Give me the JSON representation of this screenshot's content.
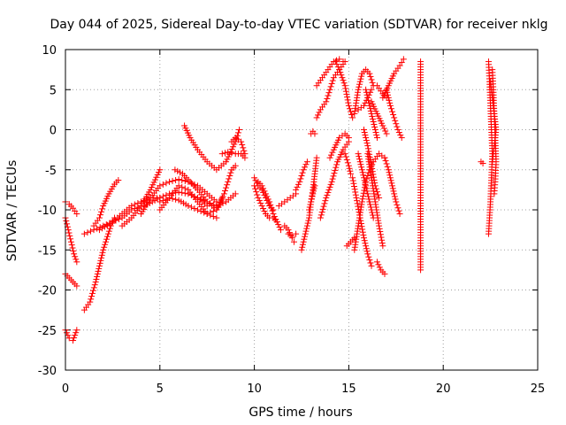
{
  "chart_data": {
    "type": "scatter",
    "title": "Day 044 of 2025, Sidereal Day-to-day VTEC variation (SDTVAR) for receiver nklg",
    "xlabel": "GPS time / hours",
    "ylabel": "SDTVAR / TECUs",
    "xlim": [
      0,
      25
    ],
    "ylim": [
      -30,
      10
    ],
    "xticks": [
      "0",
      "5",
      "10",
      "15",
      "20",
      "25"
    ],
    "yticks": [
      "10",
      "5",
      "0",
      "-5",
      "-10",
      "-15",
      "-20",
      "-25",
      "-30"
    ],
    "grid": true,
    "marker": "+",
    "color": "#ff0000",
    "series": [
      {
        "name": "s1",
        "x": [
          0.0,
          0.2,
          0.4,
          0.6
        ],
        "y": [
          -9.0,
          -9.3,
          -9.8,
          -10.5
        ]
      },
      {
        "name": "s2",
        "x": [
          0.0,
          0.15,
          0.3,
          0.45,
          0.6
        ],
        "y": [
          -11.0,
          -12.5,
          -14.0,
          -15.5,
          -16.5
        ]
      },
      {
        "name": "s3",
        "x": [
          0.0,
          0.2,
          0.4,
          0.6
        ],
        "y": [
          -18.0,
          -18.5,
          -19.0,
          -19.5
        ]
      },
      {
        "name": "s4",
        "x": [
          0.0,
          0.2,
          0.4,
          0.6
        ],
        "y": [
          -25.0,
          -26.0,
          -26.3,
          -25.0
        ]
      },
      {
        "name": "s5",
        "x": [
          1.0,
          1.3,
          1.6,
          2.0,
          2.4,
          2.6
        ],
        "y": [
          -22.5,
          -21.5,
          -19.0,
          -15.0,
          -12.0,
          -11.0
        ]
      },
      {
        "name": "s6",
        "x": [
          1.5,
          1.8,
          2.0,
          2.3,
          2.6,
          2.8
        ],
        "y": [
          -12.0,
          -11.0,
          -9.5,
          -8.0,
          -6.8,
          -6.3
        ]
      },
      {
        "name": "s7",
        "x": [
          1.0,
          1.5,
          2.0,
          2.5,
          3.0,
          3.5,
          4.0
        ],
        "y": [
          -13.0,
          -12.5,
          -12.0,
          -11.5,
          -11.0,
          -10.0,
          -9.5
        ]
      },
      {
        "name": "s8",
        "x": [
          1.8,
          2.5,
          3.0,
          3.5,
          4.0,
          4.5,
          5.0
        ],
        "y": [
          -12.5,
          -11.5,
          -10.5,
          -9.5,
          -9.0,
          -8.5,
          -8.5
        ]
      },
      {
        "name": "s9",
        "x": [
          3.0,
          3.5,
          4.0,
          4.5,
          5.0
        ],
        "y": [
          -12.0,
          -11.0,
          -9.5,
          -7.5,
          -5.0
        ]
      },
      {
        "name": "s10",
        "x": [
          4.0,
          4.5,
          5.0,
          5.5,
          6.0,
          6.5,
          7.0,
          7.5,
          8.0
        ],
        "y": [
          -10.5,
          -8.5,
          -7.0,
          -6.5,
          -6.2,
          -6.5,
          -7.0,
          -8.0,
          -9.0
        ]
      },
      {
        "name": "s11",
        "x": [
          4.2,
          5.0,
          5.5,
          6.0,
          6.5,
          7.0,
          7.5
        ],
        "y": [
          -9.5,
          -8.5,
          -8.0,
          -7.8,
          -8.0,
          -8.5,
          -9.5
        ]
      },
      {
        "name": "s12",
        "x": [
          5.0,
          5.5,
          6.0,
          6.5,
          7.0,
          7.5,
          8.0
        ],
        "y": [
          -9.0,
          -8.5,
          -8.8,
          -9.5,
          -10.0,
          -10.5,
          -11.0
        ]
      },
      {
        "name": "s13",
        "x": [
          5.0,
          5.5,
          6.0,
          6.5,
          7.0,
          7.5,
          8.0,
          8.3
        ],
        "y": [
          -10.0,
          -8.5,
          -7.0,
          -7.5,
          -9.0,
          -10.5,
          -10.0,
          -9.0
        ]
      },
      {
        "name": "s14",
        "x": [
          5.8,
          6.2,
          6.6,
          7.0,
          7.5,
          8.0,
          8.3
        ],
        "y": [
          -5.0,
          -5.5,
          -6.5,
          -7.5,
          -9.0,
          -10.0,
          -8.5
        ]
      },
      {
        "name": "s15",
        "x": [
          6.3,
          6.6,
          7.0,
          7.5,
          8.0,
          8.5,
          9.0,
          9.2
        ],
        "y": [
          0.5,
          -1.0,
          -2.5,
          -4.0,
          -5.0,
          -4.0,
          -1.5,
          0.0
        ]
      },
      {
        "name": "s16",
        "x": [
          7.0,
          7.5,
          8.0,
          8.5,
          9.0
        ],
        "y": [
          -8.5,
          -9.0,
          -9.5,
          -9.0,
          -8.0
        ]
      },
      {
        "name": "s17",
        "x": [
          8.2,
          8.4,
          8.6,
          8.8,
          9.0
        ],
        "y": [
          -9.0,
          -8.0,
          -6.5,
          -5.0,
          -4.5
        ]
      },
      {
        "name": "s18",
        "x": [
          8.3,
          8.6,
          9.0,
          9.3,
          9.5
        ],
        "y": [
          -3.0,
          -2.8,
          -3.0,
          -3.0,
          -3.5
        ]
      },
      {
        "name": "s19",
        "x": [
          8.8,
          9.0,
          9.3,
          9.5
        ],
        "y": [
          -1.5,
          -1.0,
          -1.5,
          -3.0
        ]
      },
      {
        "name": "s20",
        "x": [
          10.0,
          10.2,
          10.4,
          10.6,
          10.8,
          11.0
        ],
        "y": [
          -6.0,
          -7.0,
          -7.5,
          -8.5,
          -9.5,
          -10.0
        ]
      },
      {
        "name": "s21",
        "x": [
          10.0,
          10.2,
          10.4,
          10.6,
          10.8
        ],
        "y": [
          -7.0,
          -8.5,
          -9.5,
          -10.5,
          -11.0
        ]
      },
      {
        "name": "s22",
        "x": [
          10.2,
          10.4,
          10.6,
          10.8,
          11.0,
          11.2
        ],
        "y": [
          -6.5,
          -7.0,
          -8.0,
          -9.0,
          -10.5,
          -11.5
        ]
      },
      {
        "name": "s23",
        "x": [
          11.0,
          11.2,
          11.4
        ],
        "y": [
          -11.0,
          -11.5,
          -12.5
        ]
      },
      {
        "name": "s24",
        "x": [
          11.3,
          11.6,
          11.9,
          12.2
        ],
        "y": [
          -9.5,
          -9.0,
          -8.5,
          -8.0
        ]
      },
      {
        "name": "s25",
        "x": [
          11.6,
          11.8,
          12.0,
          12.1
        ],
        "y": [
          -12.0,
          -12.5,
          -13.5,
          -14.0
        ]
      },
      {
        "name": "s26",
        "x": [
          11.8,
          12.0,
          12.2
        ],
        "y": [
          -13.0,
          -13.3,
          -13.0
        ]
      },
      {
        "name": "s27",
        "x": [
          12.2,
          12.4,
          12.6,
          12.8
        ],
        "y": [
          -7.5,
          -6.5,
          -5.0,
          -4.0
        ]
      },
      {
        "name": "s28",
        "x": [
          12.5,
          12.7,
          12.9,
          13.0,
          13.2
        ],
        "y": [
          -15.0,
          -13.0,
          -11.0,
          -9.0,
          -7.0
        ]
      },
      {
        "name": "s29",
        "x": [
          12.9,
          13.0,
          13.1,
          13.2,
          13.3
        ],
        "y": [
          -10.0,
          -9.0,
          -7.5,
          -5.5,
          -3.5
        ]
      },
      {
        "name": "s30",
        "x": [
          13.0,
          13.1,
          13.2
        ],
        "y": [
          -0.5,
          -0.2,
          -0.5
        ]
      },
      {
        "name": "s31",
        "x": [
          13.3,
          13.5,
          13.8,
          14.0,
          14.2,
          14.5,
          14.8
        ],
        "y": [
          1.5,
          2.5,
          3.5,
          5.0,
          6.5,
          7.5,
          8.5
        ]
      },
      {
        "name": "s32",
        "x": [
          13.3,
          13.6,
          13.9,
          14.2,
          14.5,
          14.7
        ],
        "y": [
          5.5,
          6.5,
          7.5,
          8.5,
          8.8,
          8.5
        ]
      },
      {
        "name": "s33",
        "x": [
          13.5,
          13.8,
          14.1,
          14.4,
          14.7,
          15.0
        ],
        "y": [
          -11.0,
          -8.5,
          -6.5,
          -4.0,
          -2.5,
          -1.5
        ]
      },
      {
        "name": "s34",
        "x": [
          14.0,
          14.2,
          14.5,
          14.8,
          15.0
        ],
        "y": [
          -3.5,
          -2.5,
          -1.0,
          -0.5,
          -1.0
        ]
      },
      {
        "name": "s35",
        "x": [
          14.3,
          14.5,
          14.8,
          15.0,
          15.2
        ],
        "y": [
          8.5,
          7.5,
          5.5,
          3.0,
          1.5
        ]
      },
      {
        "name": "s36",
        "x": [
          14.8,
          15.0,
          15.1
        ],
        "y": [
          -3.0,
          -4.5,
          -5.5
        ]
      },
      {
        "name": "s37",
        "x": [
          14.9,
          15.1,
          15.3
        ],
        "y": [
          -14.5,
          -14.0,
          -13.5
        ]
      },
      {
        "name": "s38",
        "x": [
          15.3,
          15.5,
          15.7,
          15.9,
          16.1,
          16.3,
          16.6,
          16.9
        ],
        "y": [
          -15.0,
          -12.0,
          -9.0,
          -6.5,
          -5.0,
          -4.0,
          -3.0,
          -3.5
        ]
      },
      {
        "name": "s39",
        "x": [
          15.2,
          15.4,
          15.6,
          15.8,
          16.0,
          16.2
        ],
        "y": [
          -6.0,
          -8.5,
          -11.0,
          -13.5,
          -15.5,
          -17.0
        ]
      },
      {
        "name": "s40",
        "x": [
          15.3,
          15.5,
          15.7,
          15.9,
          16.1,
          16.3
        ],
        "y": [
          2.0,
          5.0,
          7.0,
          7.5,
          7.0,
          5.5
        ]
      },
      {
        "name": "s41",
        "x": [
          15.5,
          15.7,
          15.9,
          16.1,
          16.3
        ],
        "y": [
          -3.0,
          -5.0,
          -7.0,
          -9.0,
          -11.0
        ]
      },
      {
        "name": "s42",
        "x": [
          15.8,
          16.0,
          16.2,
          16.4,
          16.6
        ],
        "y": [
          0.0,
          -2.0,
          -4.5,
          -7.0,
          -8.5
        ]
      },
      {
        "name": "s43",
        "x": [
          15.5,
          15.8,
          16.0,
          16.2
        ],
        "y": [
          2.5,
          3.0,
          4.0,
          5.0
        ]
      },
      {
        "name": "s44",
        "x": [
          15.9,
          16.1,
          16.3,
          16.5
        ],
        "y": [
          5.0,
          3.0,
          1.0,
          -1.0
        ]
      },
      {
        "name": "s45",
        "x": [
          16.0,
          16.2,
          16.4,
          16.6,
          16.8
        ],
        "y": [
          -3.0,
          -6.0,
          -9.0,
          -12.0,
          -14.5
        ]
      },
      {
        "name": "s46",
        "x": [
          16.2,
          16.5,
          16.8,
          17.0
        ],
        "y": [
          3.5,
          2.0,
          0.5,
          -0.5
        ]
      },
      {
        "name": "s47",
        "x": [
          16.5,
          16.7,
          16.9
        ],
        "y": [
          -16.5,
          -17.5,
          -18.0
        ]
      },
      {
        "name": "s48",
        "x": [
          16.9,
          17.1,
          17.3,
          17.5,
          17.7
        ],
        "y": [
          -3.5,
          -5.0,
          -7.0,
          -9.0,
          -10.5
        ]
      },
      {
        "name": "s49",
        "x": [
          16.8,
          17.1,
          17.4,
          17.7,
          17.9
        ],
        "y": [
          4.0,
          5.5,
          7.0,
          8.0,
          8.8
        ]
      },
      {
        "name": "s50",
        "x": [
          17.0,
          17.2,
          17.4,
          17.6,
          17.8
        ],
        "y": [
          5.0,
          3.0,
          1.5,
          0.0,
          -1.0
        ]
      },
      {
        "name": "s51",
        "x": [
          16.5,
          16.8,
          17.0
        ],
        "y": [
          5.5,
          4.5,
          4.0
        ]
      },
      {
        "name": "s52",
        "x": [
          18.8,
          18.8,
          18.8,
          18.8
        ],
        "y": [
          8.5,
          -6.5,
          -7.5,
          -17.5
        ]
      },
      {
        "name": "s53",
        "x": [
          22.0,
          22.1
        ],
        "y": [
          -4.0,
          -4.2
        ]
      },
      {
        "name": "s54",
        "x": [
          22.4,
          22.45,
          22.5,
          22.55,
          22.6,
          22.55,
          22.5,
          22.45,
          22.4
        ],
        "y": [
          8.5,
          6.0,
          3.0,
          0.0,
          -3.0,
          -6.0,
          -9.0,
          -11.0,
          -13.0
        ]
      },
      {
        "name": "s55",
        "x": [
          22.6,
          22.65,
          22.7,
          22.75,
          22.8,
          22.75,
          22.7
        ],
        "y": [
          7.5,
          5.0,
          2.0,
          -1.0,
          -4.0,
          -6.5,
          -8.0
        ]
      },
      {
        "name": "s56",
        "x": [
          22.5,
          22.6,
          22.7,
          22.8,
          22.7,
          22.6
        ],
        "y": [
          6.0,
          4.0,
          2.0,
          0.0,
          -2.0,
          -4.0
        ]
      }
    ]
  }
}
